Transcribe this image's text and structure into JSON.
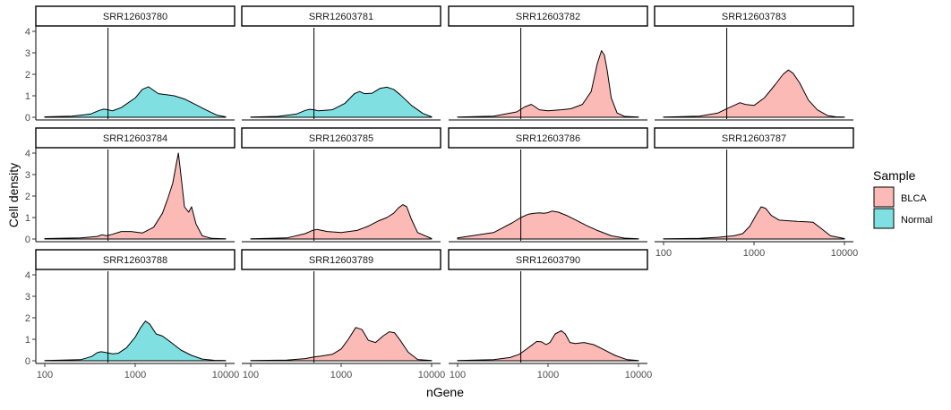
{
  "chart_data": {
    "type": "area",
    "subtype": "faceted density plot",
    "xlabel": "nGene",
    "ylabel": "Cell density",
    "x_scale": "log10",
    "xlim": [
      100,
      10000
    ],
    "x_ticks": [
      100,
      1000,
      10000
    ],
    "x_tick_labels": [
      "100",
      "1000",
      "10000"
    ],
    "ylim": [
      0,
      4.2
    ],
    "y_ticks": [
      0,
      1,
      2,
      3,
      4
    ],
    "y_tick_labels": [
      "0",
      "1",
      "2",
      "3",
      "4"
    ],
    "vline_x": 500,
    "grid": false,
    "facet_layout": {
      "ncol": 4,
      "nrow": 3
    },
    "legend": {
      "title": "Sample",
      "position": "right",
      "items": [
        {
          "label": "BLCA",
          "color": "#F8766D"
        },
        {
          "label": "Normal",
          "color": "#00BFC4"
        }
      ]
    },
    "panels": [
      {
        "title": "SRR12603780",
        "sample": "Normal",
        "x": [
          100,
          200,
          320,
          400,
          450,
          500,
          560,
          700,
          1000,
          1200,
          1400,
          1600,
          1800,
          2200,
          2700,
          3500,
          4500,
          6000,
          8000,
          10000
        ],
        "y": [
          0.02,
          0.05,
          0.15,
          0.32,
          0.38,
          0.35,
          0.3,
          0.45,
          0.9,
          1.3,
          1.42,
          1.25,
          1.1,
          1.05,
          1.0,
          0.85,
          0.62,
          0.35,
          0.1,
          0.02
        ]
      },
      {
        "title": "SRR12603781",
        "sample": "Normal",
        "x": [
          100,
          200,
          320,
          400,
          450,
          500,
          560,
          800,
          1100,
          1400,
          1600,
          1800,
          2200,
          2700,
          3200,
          3800,
          4500,
          6000,
          8000,
          10000
        ],
        "y": [
          0.01,
          0.04,
          0.15,
          0.32,
          0.37,
          0.35,
          0.3,
          0.35,
          0.65,
          1.1,
          1.2,
          1.1,
          1.12,
          1.35,
          1.4,
          1.3,
          1.05,
          0.55,
          0.18,
          0.02
        ]
      },
      {
        "title": "SRR12603782",
        "sample": "BLCA",
        "x": [
          100,
          250,
          450,
          550,
          650,
          700,
          800,
          1000,
          1400,
          1800,
          2400,
          3000,
          3500,
          3900,
          4200,
          4500,
          5000,
          5800,
          7000,
          10000
        ],
        "y": [
          0.01,
          0.05,
          0.25,
          0.48,
          0.6,
          0.52,
          0.35,
          0.3,
          0.35,
          0.4,
          0.6,
          1.2,
          2.5,
          3.1,
          2.9,
          2.2,
          0.9,
          0.2,
          0.04,
          0.01
        ]
      },
      {
        "title": "SRR12603783",
        "sample": "BLCA",
        "x": [
          100,
          250,
          400,
          500,
          600,
          700,
          800,
          1000,
          1300,
          1700,
          2100,
          2400,
          2700,
          3200,
          4000,
          5000,
          6500,
          8000,
          10000
        ],
        "y": [
          0.01,
          0.05,
          0.2,
          0.4,
          0.55,
          0.68,
          0.6,
          0.55,
          0.9,
          1.5,
          2.0,
          2.2,
          2.05,
          1.6,
          0.8,
          0.35,
          0.08,
          0.02,
          0.01
        ]
      },
      {
        "title": "SRR12603784",
        "sample": "BLCA",
        "x": [
          100,
          250,
          380,
          430,
          480,
          560,
          700,
          900,
          1200,
          1600,
          2000,
          2300,
          2600,
          2850,
          3000,
          3200,
          3500,
          3900,
          4200,
          4700,
          5500,
          7000,
          10000
        ],
        "y": [
          0.02,
          0.05,
          0.12,
          0.2,
          0.15,
          0.22,
          0.35,
          0.35,
          0.28,
          0.55,
          1.2,
          1.9,
          2.6,
          3.5,
          4.0,
          3.0,
          1.5,
          1.25,
          1.5,
          0.7,
          0.15,
          0.03,
          0.01
        ]
      },
      {
        "title": "SRR12603785",
        "sample": "BLCA",
        "x": [
          100,
          250,
          400,
          480,
          540,
          700,
          1000,
          1500,
          2000,
          2600,
          3200,
          3800,
          4300,
          4800,
          5300,
          6000,
          7000,
          10000
        ],
        "y": [
          0.01,
          0.05,
          0.25,
          0.4,
          0.45,
          0.35,
          0.3,
          0.4,
          0.6,
          0.85,
          1.0,
          1.2,
          1.45,
          1.6,
          1.5,
          0.9,
          0.3,
          0.02
        ]
      },
      {
        "title": "SRR12603786",
        "sample": "BLCA",
        "x": [
          100,
          250,
          400,
          500,
          600,
          700,
          800,
          900,
          1000,
          1100,
          1300,
          1600,
          2000,
          2600,
          3500,
          5000,
          7000,
          10000
        ],
        "y": [
          0.05,
          0.3,
          0.75,
          1.0,
          1.15,
          1.2,
          1.22,
          1.2,
          1.23,
          1.3,
          1.25,
          1.1,
          0.9,
          0.65,
          0.4,
          0.15,
          0.04,
          0.01
        ]
      },
      {
        "title": "SRR12603787",
        "sample": "BLCA",
        "x": [
          100,
          250,
          400,
          500,
          600,
          750,
          900,
          1050,
          1200,
          1350,
          1550,
          1900,
          2400,
          3000,
          3800,
          4500,
          5500,
          7000,
          10000
        ],
        "y": [
          0.01,
          0.03,
          0.08,
          0.12,
          0.15,
          0.25,
          0.6,
          1.1,
          1.5,
          1.42,
          1.1,
          0.88,
          0.85,
          0.82,
          0.8,
          0.78,
          0.5,
          0.15,
          0.02
        ]
      },
      {
        "title": "SRR12603788",
        "sample": "Normal",
        "x": [
          100,
          250,
          330,
          380,
          420,
          480,
          560,
          650,
          800,
          1000,
          1150,
          1300,
          1450,
          1700,
          2000,
          2500,
          3200,
          4200,
          5500,
          7500,
          10000
        ],
        "y": [
          0.01,
          0.05,
          0.2,
          0.38,
          0.42,
          0.38,
          0.32,
          0.35,
          0.6,
          1.1,
          1.55,
          1.85,
          1.7,
          1.25,
          1.15,
          0.85,
          0.5,
          0.25,
          0.08,
          0.02,
          0.01
        ]
      },
      {
        "title": "SRR12603789",
        "sample": "BLCA",
        "x": [
          100,
          250,
          400,
          500,
          600,
          800,
          1000,
          1200,
          1450,
          1700,
          2000,
          2400,
          2900,
          3400,
          3900,
          4500,
          5500,
          7000,
          10000
        ],
        "y": [
          0.01,
          0.03,
          0.1,
          0.18,
          0.22,
          0.3,
          0.55,
          1.0,
          1.55,
          1.45,
          0.95,
          0.85,
          1.15,
          1.35,
          1.3,
          0.95,
          0.4,
          0.06,
          0.01
        ]
      },
      {
        "title": "SRR12603790",
        "sample": "BLCA",
        "x": [
          100,
          250,
          380,
          480,
          560,
          650,
          750,
          850,
          950,
          1050,
          1200,
          1400,
          1550,
          1750,
          2000,
          2500,
          3200,
          4000,
          5500,
          7500,
          10000
        ],
        "y": [
          0.01,
          0.05,
          0.15,
          0.3,
          0.5,
          0.7,
          0.9,
          0.88,
          0.75,
          0.85,
          1.25,
          1.4,
          1.25,
          0.85,
          0.8,
          0.85,
          0.75,
          0.55,
          0.25,
          0.05,
          0.01
        ]
      }
    ]
  }
}
